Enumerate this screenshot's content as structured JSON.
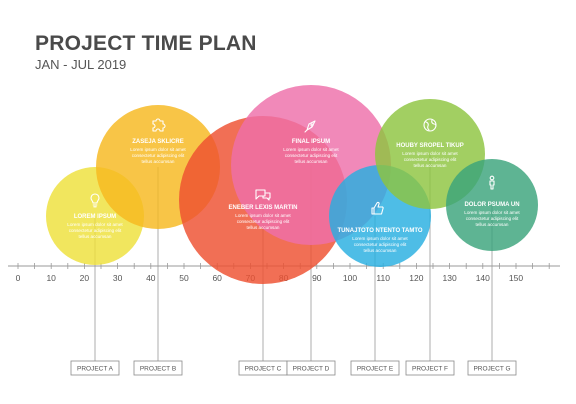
{
  "header": {
    "title": "PROJECT TIME PLAN",
    "subtitle": "JAN - JUL 2019"
  },
  "axis": {
    "ticks": [
      "0",
      "10",
      "20",
      "30",
      "40",
      "50",
      "60",
      "70",
      "80",
      "90",
      "100",
      "110",
      "120",
      "130",
      "140",
      "150"
    ]
  },
  "bubbles": [
    {
      "heading": "LOREM IPSUM",
      "body": [
        "Lorem ipsum dolor sit amet",
        "consectetur adipiscing elit",
        "tellus accumsan"
      ],
      "icon": "lightbulb-icon",
      "color": "#eee13a",
      "project": "PROJECT A"
    },
    {
      "heading": "ZASEJA SKLICRE",
      "body": [
        "Lorem ipsum dolor sit amet",
        "consectetur adipiscing elit",
        "tellus accumsan"
      ],
      "icon": "puzzle-icon",
      "color": "#f6b81f",
      "project": "PROJECT B"
    },
    {
      "heading": "ENEBER LEXIS MARTIN",
      "body": [
        "Lorem ipsum dolor sit amet",
        "consectetur adipiscing elit",
        "tellus accumsan"
      ],
      "icon": "chat-icon",
      "color": "#ee4f30",
      "project": "PROJECT C"
    },
    {
      "heading": "FINAL IPSUM",
      "body": [
        "Lorem ipsum dolor sit amet",
        "consectetur adipiscing elit",
        "tellus accumsan"
      ],
      "icon": "rocket-icon",
      "color": "#ee6fa9",
      "project": "PROJECT D"
    },
    {
      "heading": "TUNAJTOTO NTENTO TAMTO",
      "body": [
        "Lorem ipsum dolor sit amet",
        "consectetur adipiscing elit",
        "tellus accumsan"
      ],
      "icon": "thumbs-up-icon",
      "color": "#27aee0",
      "project": "PROJECT E"
    },
    {
      "heading": "HOUBY SROPEL TIKUP",
      "body": [
        "Lorem ipsum dolor sit amet",
        "consectetur adipiscing elit",
        "tellus accumsan"
      ],
      "icon": "globe-icon",
      "color": "#8ec43f",
      "project": "PROJECT F"
    },
    {
      "heading": "DOLOR PSUMA UN",
      "body": [
        "Lorem ipsum dolor sit amet",
        "consectetur adipiscing elit",
        "tellus accumsan"
      ],
      "icon": "person-icon",
      "color": "#3aa37b",
      "project": "PROJECT G"
    }
  ]
}
